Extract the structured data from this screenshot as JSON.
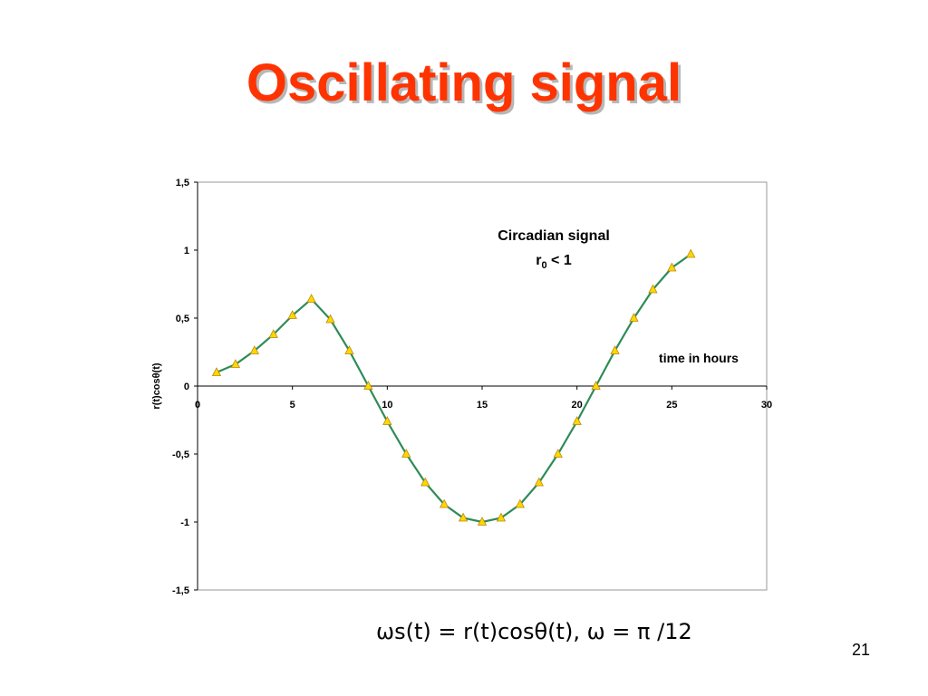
{
  "slide": {
    "title": "Oscillating signal",
    "formula": "ωs(t) = r(t)cosθ(t),  ω = π /12",
    "slide_number": "21"
  },
  "colors": {
    "title": "#ff3300",
    "line": "#2e8b57",
    "marker_fill": "#ffd700",
    "marker_stroke": "#b8860b"
  },
  "chart_data": {
    "type": "line",
    "ylabel": "r(t)cosθ(t)",
    "annotations": {
      "signal_label": "Circadian signal",
      "condition_prefix": "r",
      "condition_sub": "0",
      "condition_suffix": " < 1",
      "time_label": "time in hours"
    },
    "xlim": [
      0,
      30
    ],
    "ylim": [
      -1.5,
      1.5
    ],
    "x_ticks": [
      "0",
      "5",
      "10",
      "15",
      "20",
      "25",
      "30"
    ],
    "y_ticks": [
      "1,5",
      "1",
      "0,5",
      "0",
      "-0,5",
      "-1",
      "-1,5"
    ],
    "grid": false,
    "markers": "triangle",
    "series": [
      {
        "x": [
          1,
          2,
          3,
          4,
          5,
          6,
          7,
          8,
          9,
          10,
          11,
          12,
          13,
          14,
          15,
          16,
          17,
          18,
          19,
          20,
          21,
          22,
          23,
          24,
          25,
          26
        ],
        "y": [
          0.1,
          0.16,
          0.26,
          0.38,
          0.52,
          0.64,
          0.49,
          0.26,
          0.0,
          -0.26,
          -0.5,
          -0.71,
          -0.87,
          -0.97,
          -1.0,
          -0.97,
          -0.87,
          -0.71,
          -0.5,
          -0.26,
          0.0,
          0.26,
          0.5,
          0.71,
          0.87,
          0.97
        ]
      }
    ]
  }
}
